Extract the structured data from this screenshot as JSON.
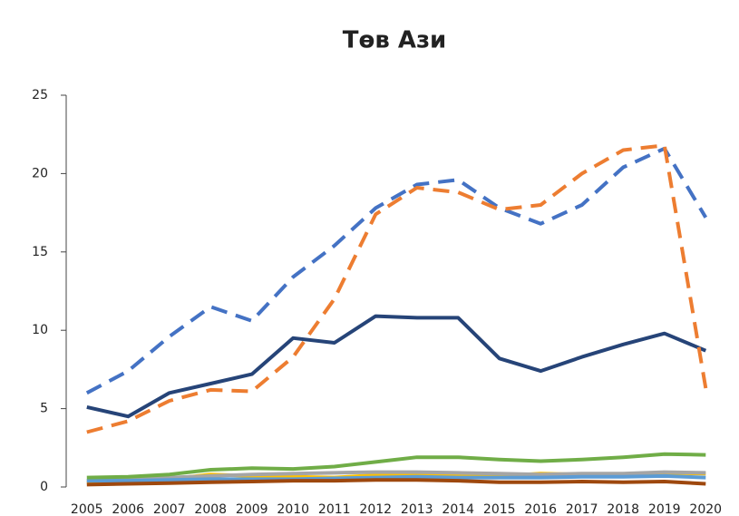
{
  "chart_data": {
    "type": "line",
    "title": "Төв Ази",
    "categories": [
      "2005",
      "2006",
      "2007",
      "2008",
      "2009",
      "2010",
      "2011",
      "2012",
      "2013",
      "2014",
      "2015",
      "2016",
      "2017",
      "2018",
      "2019",
      "2020"
    ],
    "ylim": [
      0,
      25
    ],
    "yticks": [
      0,
      5,
      10,
      15,
      20,
      25
    ],
    "series": [
      {
        "color": "#ffc000",
        "dash": false,
        "values": [
          0.3,
          0.35,
          0.5,
          0.8,
          0.7,
          0.65,
          0.6,
          0.75,
          0.8,
          0.7,
          0.7,
          0.85,
          0.8,
          0.8,
          0.9,
          0.85
        ]
      },
      {
        "color": "#a5a5a5",
        "dash": false,
        "values": [
          0.4,
          0.45,
          0.6,
          0.7,
          0.8,
          0.85,
          0.9,
          0.95,
          0.95,
          0.9,
          0.85,
          0.8,
          0.85,
          0.85,
          0.95,
          0.9
        ]
      },
      {
        "color": "#5b9bd5",
        "dash": false,
        "values": [
          0.4,
          0.4,
          0.45,
          0.5,
          0.5,
          0.5,
          0.55,
          0.6,
          0.65,
          0.6,
          0.6,
          0.6,
          0.65,
          0.65,
          0.7,
          0.6
        ]
      },
      {
        "color": "#9e480e",
        "dash": false,
        "values": [
          0.15,
          0.2,
          0.25,
          0.3,
          0.35,
          0.4,
          0.4,
          0.45,
          0.45,
          0.4,
          0.3,
          0.3,
          0.35,
          0.3,
          0.35,
          0.2
        ]
      },
      {
        "color": "#70ad47",
        "dash": false,
        "values": [
          0.6,
          0.65,
          0.8,
          1.1,
          1.2,
          1.15,
          1.3,
          1.6,
          1.9,
          1.9,
          1.75,
          1.65,
          1.75,
          1.9,
          2.1,
          2.05
        ]
      },
      {
        "color": "#264478",
        "dash": false,
        "values": [
          5.1,
          4.5,
          6.0,
          6.6,
          7.2,
          9.5,
          9.2,
          10.9,
          10.8,
          10.8,
          8.2,
          7.4,
          8.3,
          9.1,
          9.8,
          8.7
        ]
      },
      {
        "color": "#4472c4",
        "dash": true,
        "values": [
          6.0,
          7.4,
          9.6,
          11.5,
          10.6,
          13.4,
          15.4,
          17.8,
          19.3,
          19.6,
          17.8,
          16.8,
          18.0,
          20.4,
          21.6,
          17.2
        ]
      },
      {
        "color": "#ed7d31",
        "dash": true,
        "values": [
          3.5,
          4.2,
          5.5,
          6.2,
          6.1,
          8.3,
          12.0,
          17.4,
          19.1,
          18.8,
          17.7,
          18.0,
          20.0,
          21.5,
          21.8,
          6.3
        ]
      }
    ]
  }
}
